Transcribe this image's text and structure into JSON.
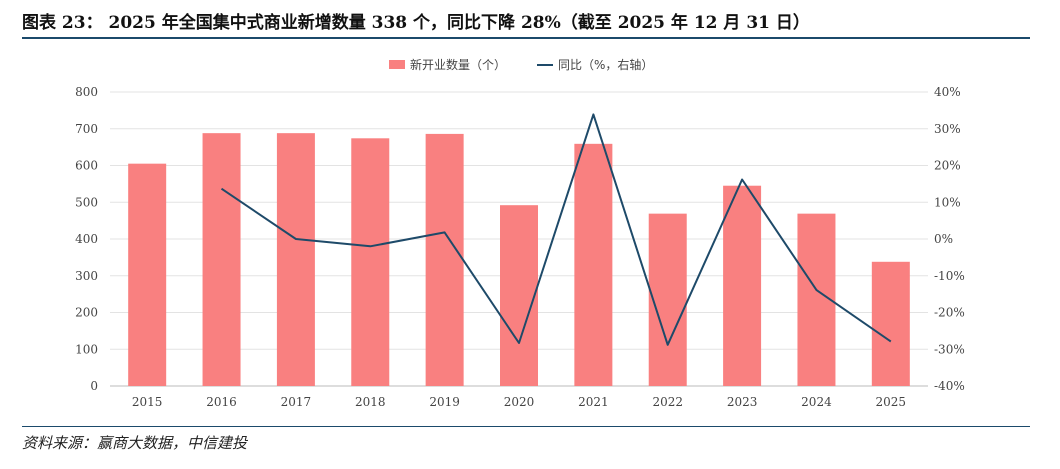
{
  "header": {
    "title": "图表 23： 2025 年全国集中式商业新增数量 338 个，同比下降 28%（截至 2025 年 12 月 31 日）"
  },
  "footer": {
    "source": "资料来源：赢商大数据，中信建投"
  },
  "colors": {
    "bar": "#f98080",
    "line": "#1e4a69",
    "rule": "#1b4a6b"
  },
  "chart_data": {
    "type": "bar",
    "categories": [
      "2015",
      "2016",
      "2017",
      "2018",
      "2019",
      "2020",
      "2021",
      "2022",
      "2023",
      "2024",
      "2025"
    ],
    "series": [
      {
        "name": "新开业数量（个）",
        "type": "bar",
        "axis": "left",
        "values": [
          605,
          688,
          688,
          674,
          686,
          492,
          659,
          469,
          545,
          469,
          338
        ]
      },
      {
        "name": "同比（%，右轴）",
        "type": "line",
        "axis": "right",
        "values": [
          null,
          13.7,
          0.0,
          -2.0,
          1.8,
          -28.3,
          33.9,
          -28.8,
          16.2,
          -13.9,
          -27.9
        ]
      }
    ],
    "y_left": {
      "min": 0,
      "max": 800,
      "ticks": [
        "0",
        "100",
        "200",
        "300",
        "400",
        "500",
        "600",
        "700",
        "800"
      ]
    },
    "y_right": {
      "min": -40,
      "max": 40,
      "ticks": [
        "-40%",
        "-30%",
        "-20%",
        "-10%",
        "0%",
        "10%",
        "20%",
        "30%",
        "40%"
      ]
    },
    "legend_position": "top-center",
    "grid": true
  }
}
